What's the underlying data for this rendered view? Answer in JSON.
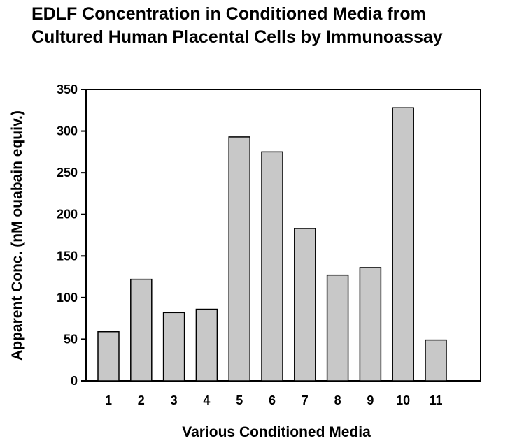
{
  "chart_data": {
    "type": "bar",
    "title_line1": "EDLF Concentration in Conditioned Media from",
    "title_line2": "Cultured Human Placental Cells by Immunoassay",
    "xlabel": "Various Conditioned Media",
    "ylabel": "Apparent Conc. (nM ouabain equiv.)",
    "categories": [
      "1",
      "2",
      "3",
      "4",
      "5",
      "6",
      "7",
      "8",
      "9",
      "10",
      "11"
    ],
    "values": [
      59,
      122,
      82,
      86,
      293,
      275,
      183,
      127,
      136,
      328,
      49
    ],
    "ylim": [
      0,
      350
    ],
    "yticks": [
      "0",
      "50",
      "100",
      "150",
      "200",
      "250",
      "300",
      "350"
    ],
    "grid": false,
    "legend": "none",
    "bar_color": "#c8c8c8",
    "bar_stroke": "#000000"
  }
}
